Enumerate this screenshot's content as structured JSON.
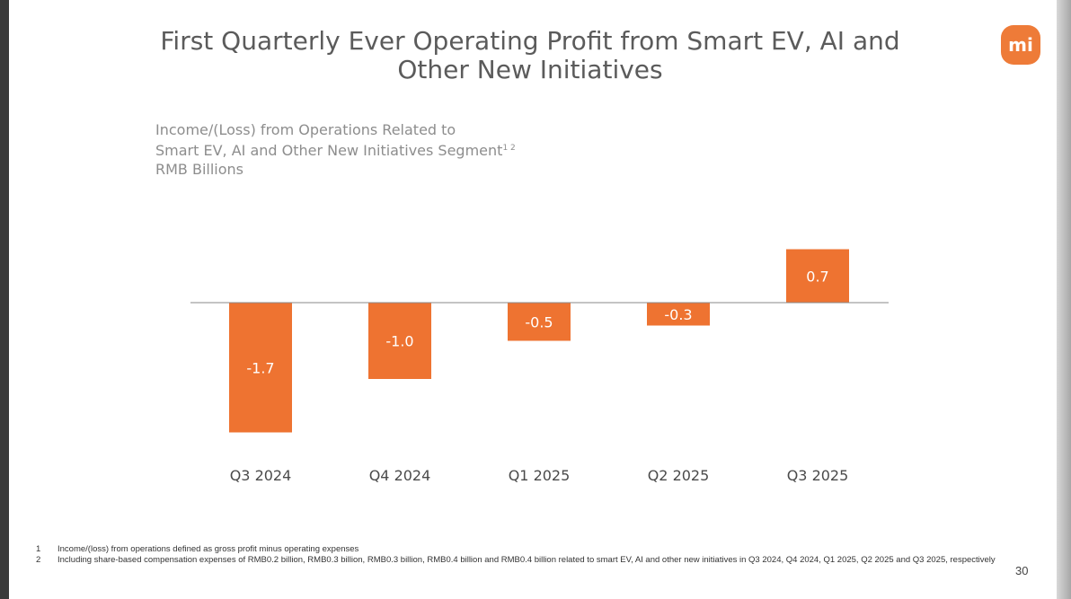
{
  "title": {
    "line1": "First Quarterly Ever Operating Profit from Smart EV, AI and",
    "line2": "Other New Initiatives"
  },
  "logo": {
    "text": "mi"
  },
  "subtitle": {
    "line1": "Income/(Loss) from Operations Related to",
    "line2": "Smart EV, AI and Other New Initiatives Segment",
    "line2_sup": "1 2",
    "line3": "RMB Billions"
  },
  "chart_data": {
    "type": "bar",
    "categories": [
      "Q3 2024",
      "Q4 2024",
      "Q1 2025",
      "Q2 2025",
      "Q3 2025"
    ],
    "values": [
      -1.7,
      -1.0,
      -0.5,
      -0.3,
      0.7
    ],
    "labels": [
      "-1.7",
      "-1.0",
      "-0.5",
      "-0.3",
      "0.7"
    ],
    "title": "Income/(Loss) from Operations Related to Smart EV, AI and Other New Initiatives Segment",
    "ylabel": "RMB Billions",
    "ylim": [
      -1.7,
      0.7
    ],
    "grid": false,
    "bar_color": "#ee7331",
    "baseline_color": "#8a8a8a"
  },
  "footnotes": [
    {
      "num": "1",
      "text": "Income/(loss) from operations defined as gross profit minus operating expenses"
    },
    {
      "num": "2",
      "text": "Including share-based compensation expenses of RMB0.2 billion, RMB0.3 billion, RMB0.3 billion, RMB0.4 billion and RMB0.4 billion related to smart EV, AI and other new initiatives in Q3 2024, Q4 2024, Q1 2025, Q2 2025 and Q3 2025, respectively"
    }
  ],
  "page_number": "30"
}
